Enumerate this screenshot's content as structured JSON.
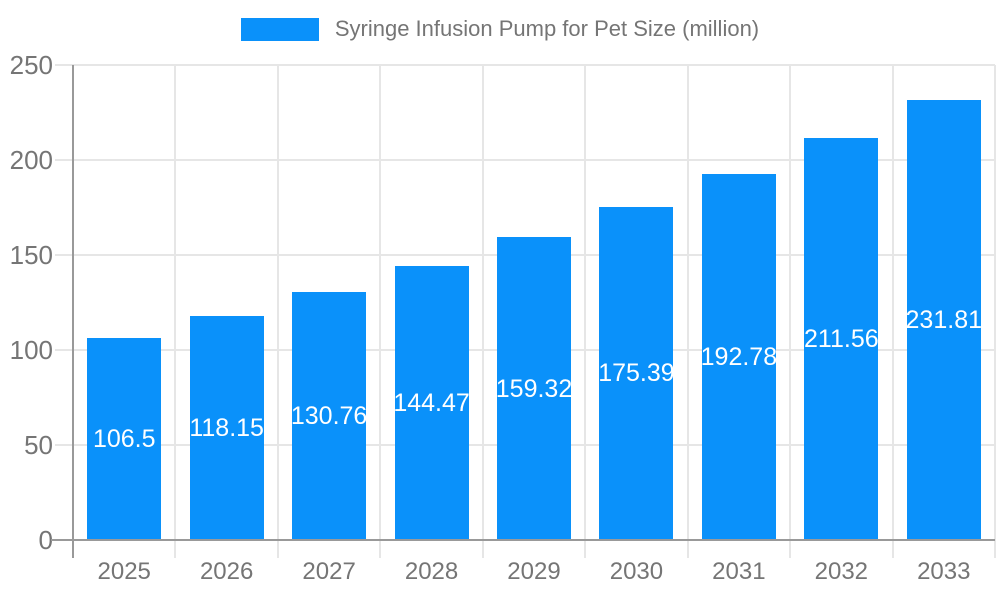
{
  "legend": {
    "label": "Syringe Infusion Pump for Pet Size (million)"
  },
  "chart_data": {
    "type": "bar",
    "title": "Syringe Infusion Pump for Pet Size (million)",
    "categories": [
      "2025",
      "2026",
      "2027",
      "2028",
      "2029",
      "2030",
      "2031",
      "2032",
      "2033"
    ],
    "series": [
      {
        "name": "Syringe Infusion Pump for Pet Size (million)",
        "values": [
          106.5,
          118.15,
          130.76,
          144.47,
          159.32,
          175.39,
          192.78,
          211.56,
          231.81
        ]
      }
    ],
    "xlabel": "",
    "ylabel": "",
    "ylim": [
      0,
      250
    ],
    "yticks": [
      0,
      50,
      100,
      150,
      200,
      250
    ],
    "grid": true,
    "legend_position": "top",
    "data_labels_position": "inside-center",
    "colors": {
      "bar": "#0a91fa",
      "axis": "#999999",
      "grid": "#e6e6e6",
      "tick_text": "#757575",
      "data_label": "#ffffff",
      "background": "#ffffff"
    }
  }
}
